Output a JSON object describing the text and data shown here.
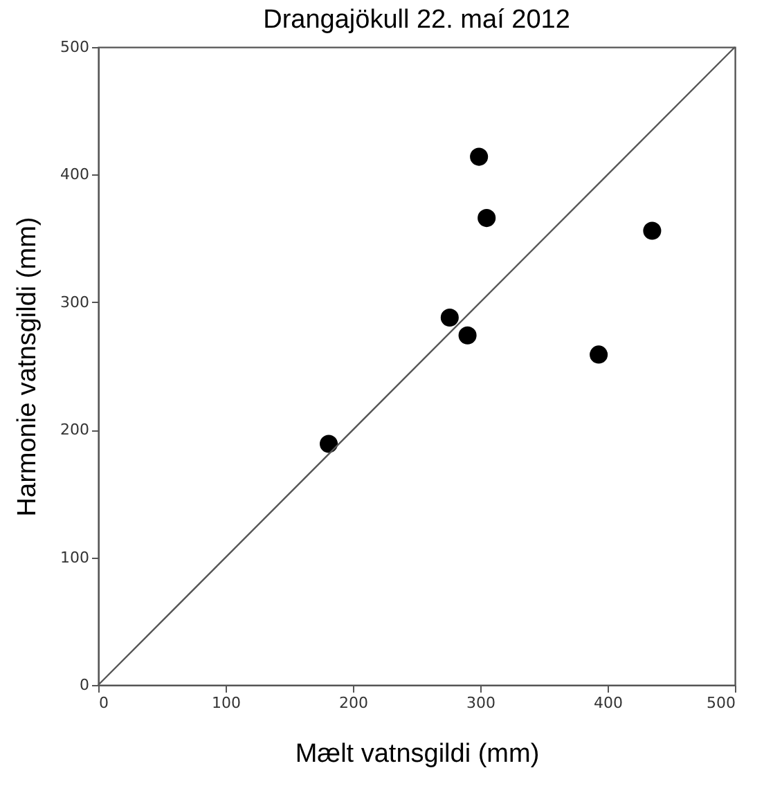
{
  "chart_data": {
    "type": "scatter",
    "title": "Drangajökull  22. maí 2012",
    "xlabel": "Mælt vatnsgildi (mm)",
    "ylabel": "Harmonie vatnsgildi (mm)",
    "x": [
      181,
      276,
      290,
      299,
      305,
      393,
      435
    ],
    "series": [
      {
        "color": "#000000",
        "marker": "circle",
        "values": [
          189,
          288,
          274,
          414,
          366,
          259,
          356
        ]
      },
      {
        "type": "line",
        "color": "#555555",
        "marker": "none",
        "x": [
          0,
          500
        ],
        "values": [
          0,
          500
        ]
      }
    ],
    "xlim": [
      0,
      500
    ],
    "ylim": [
      0,
      500
    ],
    "xticks": [
      0,
      100,
      200,
      300,
      400,
      500
    ],
    "yticks": [
      0,
      100,
      200,
      300,
      400,
      500
    ],
    "grid": false
  }
}
